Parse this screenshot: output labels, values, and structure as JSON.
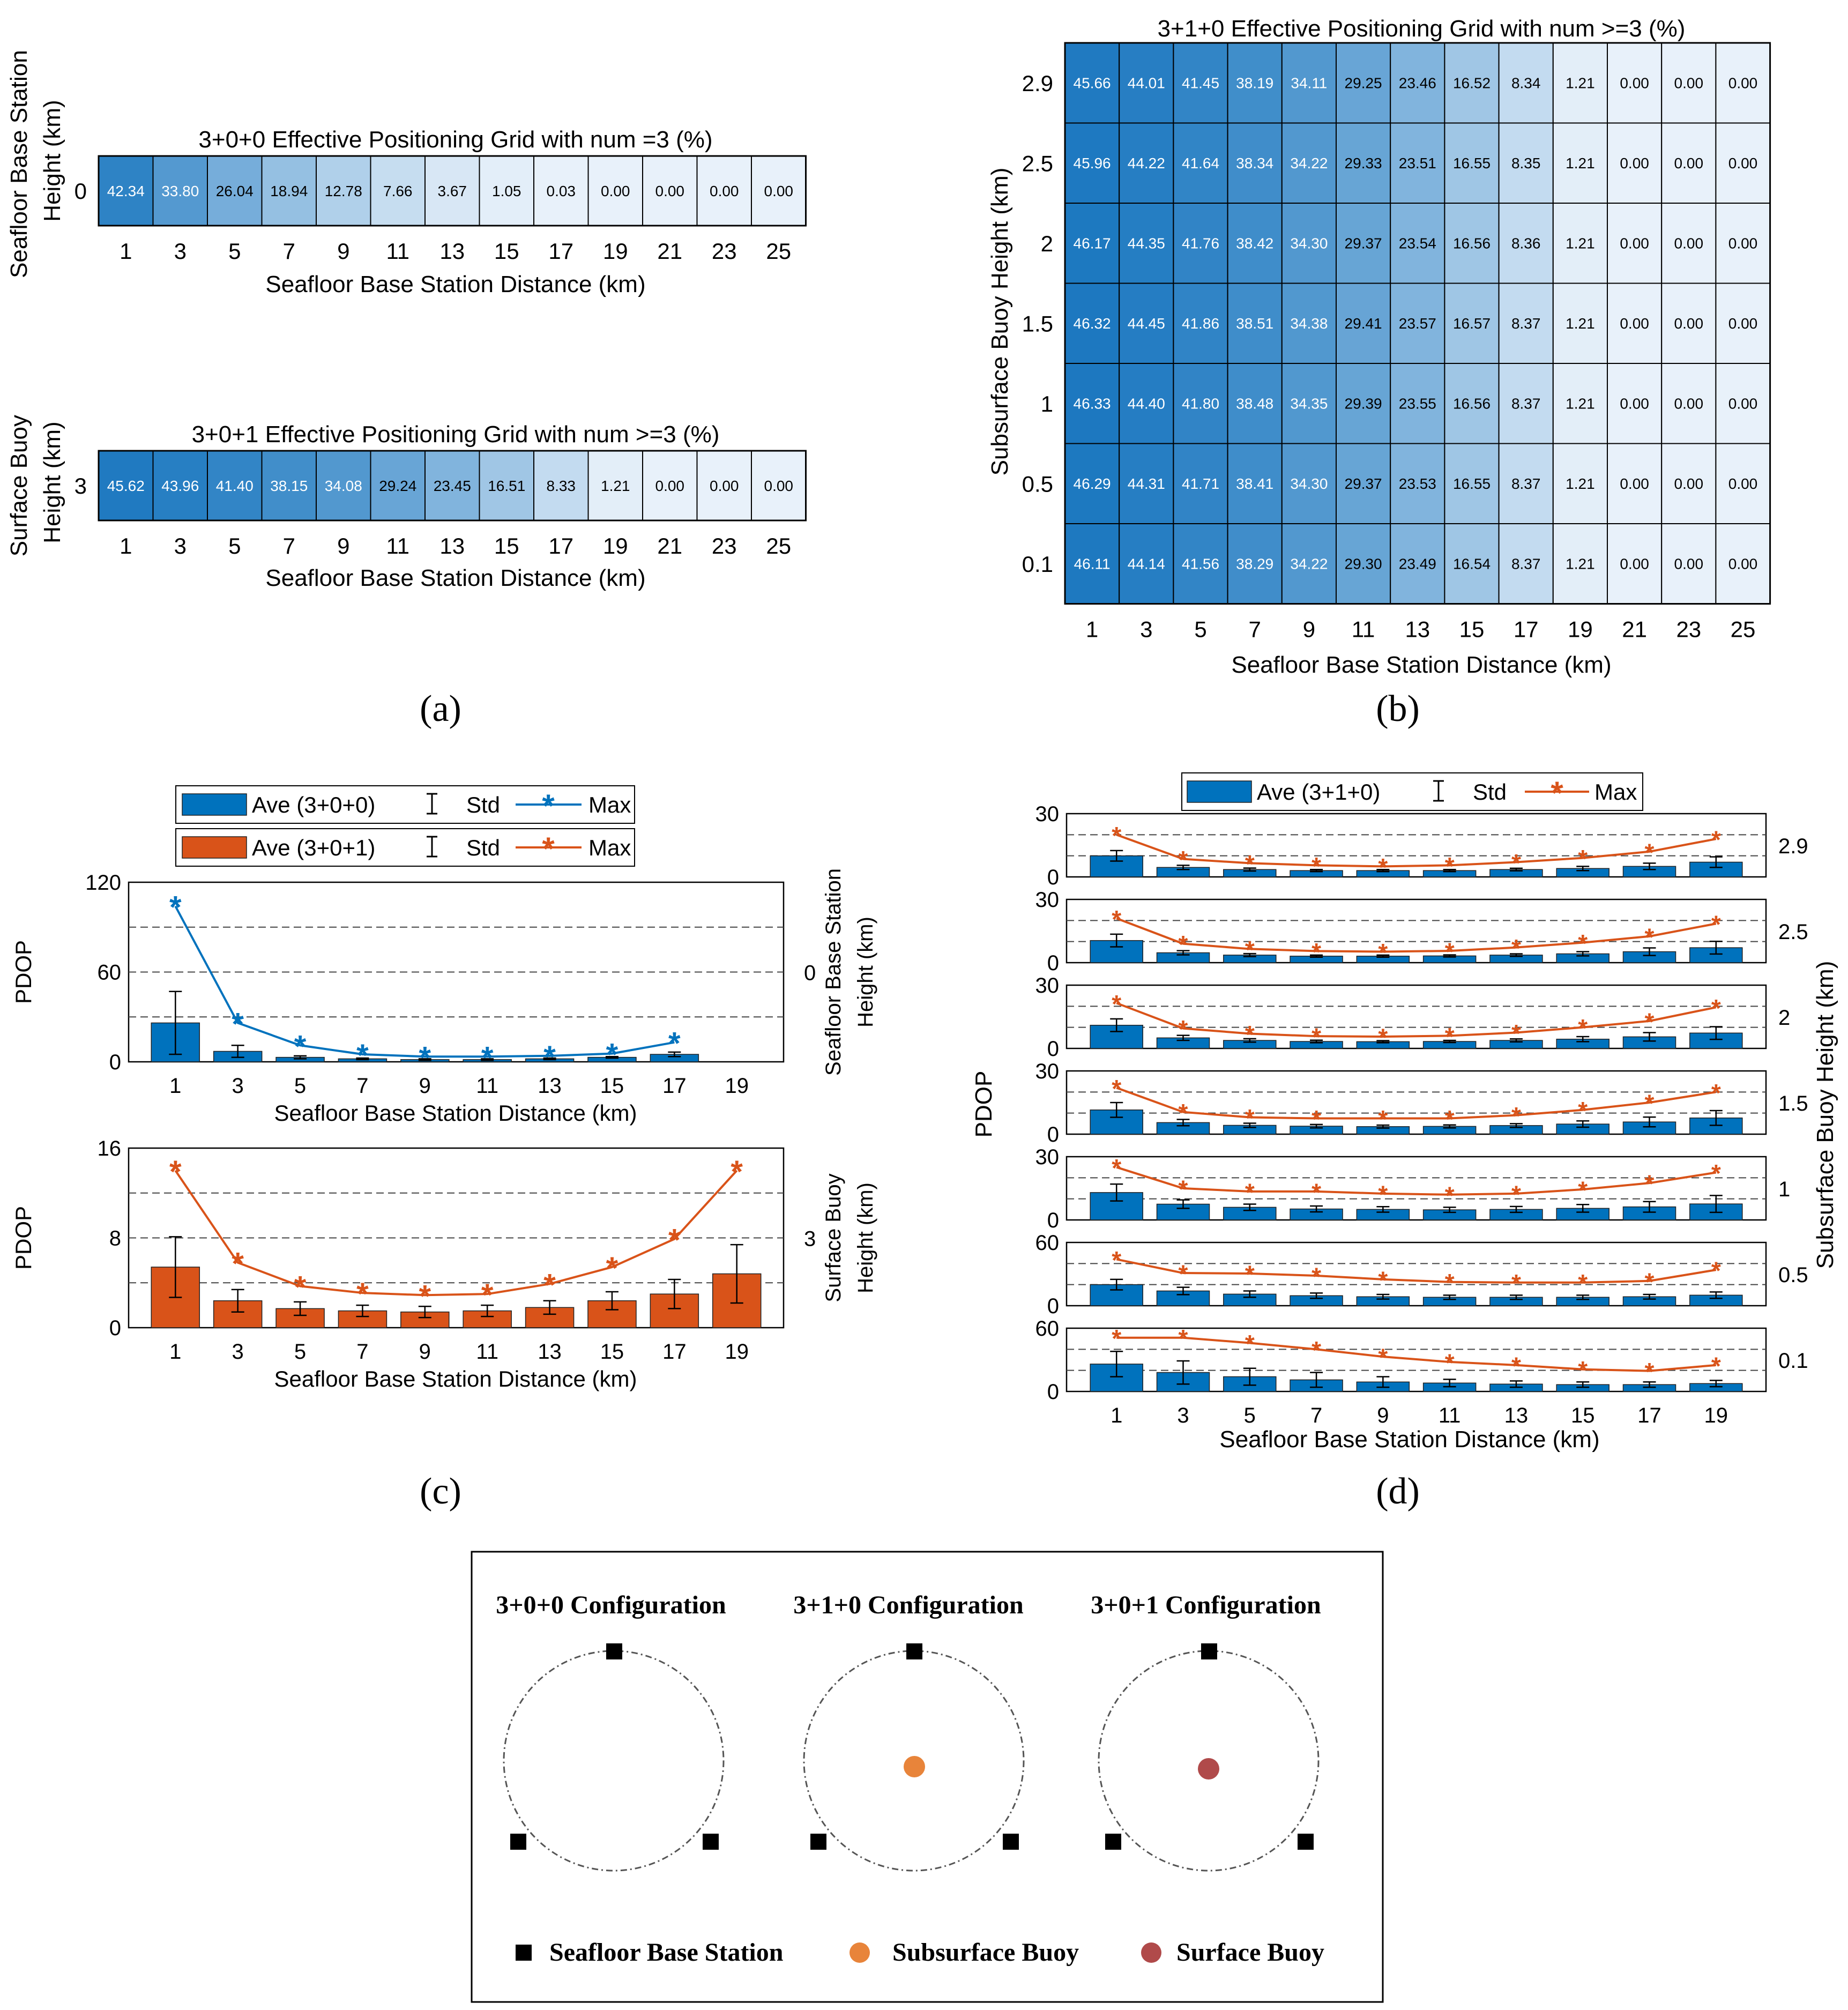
{
  "panel_labels": [
    "(a)",
    "(b)",
    "(c)",
    "(d)"
  ],
  "colors": {
    "blue": "#0072BD",
    "orange": "#D95319",
    "heat_low": "#E8F1FA",
    "heat_high": "#1C78C0",
    "subsurface_buoy": "#E8843A",
    "surface_buoy": "#B04A4A"
  },
  "chart_data": [
    {
      "id": "a-top",
      "type": "heatmap",
      "title": "3+0+0 Effective Positioning Grid with num =3 (%)",
      "xlabel": "Seafloor Base Station Distance (km)",
      "ylabel": "Seafloor Base Station Height (km)",
      "x": [
        1,
        3,
        5,
        7,
        9,
        11,
        13,
        15,
        17,
        19,
        21,
        23,
        25
      ],
      "y": [
        0
      ],
      "values": [
        [
          42.34,
          33.8,
          26.04,
          18.94,
          12.78,
          7.66,
          3.67,
          1.05,
          0.03,
          0.0,
          0.0,
          0.0,
          0.0
        ]
      ]
    },
    {
      "id": "a-bottom",
      "type": "heatmap",
      "title": "3+0+1 Effective Positioning Grid with num >=3 (%)",
      "xlabel": "Seafloor Base Station Distance (km)",
      "ylabel": "Surface Buoy Height (km)",
      "x": [
        1,
        3,
        5,
        7,
        9,
        11,
        13,
        15,
        17,
        19,
        21,
        23,
        25
      ],
      "y": [
        3
      ],
      "values": [
        [
          45.62,
          43.96,
          41.4,
          38.15,
          34.08,
          29.24,
          23.45,
          16.51,
          8.33,
          1.21,
          0.0,
          0.0,
          0.0
        ]
      ]
    },
    {
      "id": "b",
      "type": "heatmap",
      "title": "3+1+0 Effective Positioning Grid with num >=3 (%)",
      "xlabel": "Seafloor Base Station Distance (km)",
      "ylabel": "Subsurface Buoy Height (km)",
      "x": [
        1,
        3,
        5,
        7,
        9,
        11,
        13,
        15,
        17,
        19,
        21,
        23,
        25
      ],
      "y": [
        2.9,
        2.5,
        2,
        1.5,
        1,
        0.5,
        0.1
      ],
      "values": [
        [
          45.66,
          44.01,
          41.45,
          38.19,
          34.11,
          29.25,
          23.46,
          16.52,
          8.34,
          1.21,
          0.0,
          0.0,
          0.0
        ],
        [
          45.96,
          44.22,
          41.64,
          38.34,
          34.22,
          29.33,
          23.51,
          16.55,
          8.35,
          1.21,
          0.0,
          0.0,
          0.0
        ],
        [
          46.17,
          44.35,
          41.76,
          38.42,
          34.3,
          29.37,
          23.54,
          16.56,
          8.36,
          1.21,
          0.0,
          0.0,
          0.0
        ],
        [
          46.32,
          44.45,
          41.86,
          38.51,
          34.38,
          29.41,
          23.57,
          16.57,
          8.37,
          1.21,
          0.0,
          0.0,
          0.0
        ],
        [
          46.33,
          44.4,
          41.8,
          38.48,
          34.35,
          29.39,
          23.55,
          16.56,
          8.37,
          1.21,
          0.0,
          0.0,
          0.0
        ],
        [
          46.29,
          44.31,
          41.71,
          38.41,
          34.3,
          29.37,
          23.53,
          16.55,
          8.37,
          1.21,
          0.0,
          0.0,
          0.0
        ],
        [
          46.11,
          44.14,
          41.56,
          38.29,
          34.22,
          29.3,
          23.49,
          16.54,
          8.37,
          1.21,
          0.0,
          0.0,
          0.0
        ]
      ]
    },
    {
      "id": "c",
      "type": "bar",
      "ylabel": "PDOP",
      "xlabel": "Seafloor Base Station Distance (km)",
      "categories": [
        1,
        3,
        5,
        7,
        9,
        11,
        13,
        15,
        17,
        19
      ],
      "legend": [
        {
          "ave": "Ave (3+0+0)",
          "std": "Std",
          "max": "Max",
          "color": "blue",
          "marker": "*"
        },
        {
          "ave": "Ave (3+0+1)",
          "std": "Std",
          "max": "Max",
          "color": "orange",
          "marker": "*"
        }
      ],
      "subplots": [
        {
          "config": "3+0+0",
          "right_label": "Seafloor Base Station Height (km)",
          "right_tick": "0",
          "ylim": [
            0,
            120
          ],
          "yticks": [
            0,
            60,
            120
          ],
          "gridlines": [
            30,
            60,
            90
          ],
          "color": "blue",
          "ave": [
            26,
            7,
            3,
            2,
            1.5,
            1.5,
            2,
            3,
            5,
            null
          ],
          "std": [
            21,
            4,
            1,
            0.5,
            0.5,
            0.5,
            0.5,
            0.5,
            1.5,
            null
          ],
          "max": [
            104,
            26,
            11,
            5,
            3.5,
            3.5,
            4,
            5.5,
            13,
            null
          ]
        },
        {
          "config": "3+0+1",
          "right_label": "Surface Buoy Height (km)",
          "right_tick": "3",
          "ylim": [
            0,
            16
          ],
          "yticks": [
            0,
            8,
            16
          ],
          "gridlines": [
            4,
            8,
            12
          ],
          "color": "orange",
          "ave": [
            5.4,
            2.4,
            1.7,
            1.5,
            1.4,
            1.5,
            1.8,
            2.4,
            3.0,
            4.8
          ],
          "std": [
            2.7,
            1.0,
            0.6,
            0.5,
            0.5,
            0.5,
            0.6,
            0.8,
            1.3,
            2.6
          ],
          "max": [
            14.0,
            5.8,
            3.7,
            3.1,
            2.9,
            3.0,
            3.9,
            5.4,
            7.9,
            14.0
          ]
        }
      ]
    },
    {
      "id": "d",
      "type": "bar",
      "ylabel": "PDOP",
      "xlabel": "Seafloor Base Station Distance (km)",
      "right_label": "Subsurface Buoy Height (km)",
      "categories": [
        1,
        3,
        5,
        7,
        9,
        11,
        13,
        15,
        17,
        19
      ],
      "legend": {
        "ave": "Ave (3+1+0)",
        "std": "Std",
        "max": "Max"
      },
      "subplots": [
        {
          "height": "2.9",
          "ylim": [
            0,
            30
          ],
          "yticks": [
            0,
            30
          ],
          "gridlines": [
            10,
            20
          ],
          "ave": [
            10,
            4.5,
            3.5,
            3,
            3,
            3,
            3.5,
            4,
            5,
            7
          ],
          "std": [
            2.5,
            1,
            0.7,
            0.5,
            0.5,
            0.5,
            0.6,
            1,
            1.5,
            2.5
          ],
          "max": [
            20,
            8.5,
            6.5,
            5.5,
            5,
            5.5,
            7,
            9,
            12,
            18
          ]
        },
        {
          "height": "2.5",
          "ylim": [
            0,
            30
          ],
          "yticks": [
            0,
            30
          ],
          "gridlines": [
            10,
            20
          ],
          "ave": [
            10.5,
            4.7,
            3.6,
            3.1,
            3.1,
            3.2,
            3.6,
            4.2,
            5.2,
            7.1
          ],
          "std": [
            3,
            1,
            0.7,
            0.5,
            0.5,
            0.5,
            0.6,
            1,
            1.8,
            3
          ],
          "max": [
            21,
            9,
            6.5,
            5.5,
            5.2,
            5.6,
            7.2,
            9.5,
            12.5,
            18.5
          ]
        },
        {
          "height": "2",
          "ylim": [
            0,
            30
          ],
          "yticks": [
            0,
            30
          ],
          "gridlines": [
            10,
            20
          ],
          "ave": [
            11,
            5,
            3.8,
            3.3,
            3.2,
            3.3,
            3.8,
            4.4,
            5.5,
            7.3
          ],
          "std": [
            3,
            1.2,
            0.8,
            0.6,
            0.5,
            0.5,
            0.7,
            1.2,
            2,
            3
          ],
          "max": [
            21.5,
            9.5,
            7,
            5.8,
            5.6,
            6,
            7.5,
            10,
            13,
            19.5
          ]
        },
        {
          "height": "1.5",
          "ylim": [
            0,
            30
          ],
          "yticks": [
            0,
            30
          ],
          "gridlines": [
            10,
            20
          ],
          "ave": [
            11.5,
            5.5,
            4.2,
            3.8,
            3.6,
            3.7,
            4.1,
            4.8,
            5.8,
            7.7
          ],
          "std": [
            3.5,
            1.5,
            1,
            0.8,
            0.7,
            0.7,
            0.9,
            1.5,
            2.3,
            3.5
          ],
          "max": [
            22,
            10.5,
            8,
            7.5,
            7.5,
            7.5,
            9,
            11.5,
            15,
            20
          ]
        },
        {
          "height": "1",
          "ylim": [
            0,
            30
          ],
          "yticks": [
            0,
            30
          ],
          "gridlines": [
            10,
            20
          ],
          "ave": [
            13,
            7.5,
            6,
            5.2,
            5,
            4.8,
            5,
            5.5,
            6.2,
            7.6
          ],
          "std": [
            4,
            2,
            1.5,
            1.4,
            1.3,
            1.2,
            1.4,
            1.8,
            2.5,
            4
          ],
          "max": [
            25,
            15,
            13.5,
            13.5,
            12.5,
            12,
            12.5,
            14.5,
            17.5,
            22.5
          ]
        },
        {
          "height": "0.5",
          "ylim": [
            0,
            60
          ],
          "yticks": [
            0,
            60
          ],
          "gridlines": [
            20,
            40
          ],
          "ave": [
            20,
            14,
            11,
            9.5,
            8.5,
            8,
            8,
            8,
            8.5,
            10
          ],
          "std": [
            5,
            3.5,
            3,
            2.5,
            2.2,
            2,
            2,
            2,
            2.2,
            3
          ],
          "max": [
            44,
            31,
            30.5,
            28.5,
            25,
            22.5,
            22,
            22,
            23.5,
            34
          ]
        },
        {
          "height": "0.1",
          "ylim": [
            0,
            60
          ],
          "yticks": [
            0,
            60
          ],
          "gridlines": [
            20,
            40
          ],
          "ave": [
            26,
            18,
            14,
            11,
            9,
            8,
            7,
            6.5,
            6.5,
            7.5
          ],
          "std": [
            12,
            11,
            8,
            7,
            5,
            3.5,
            3,
            2.5,
            2.5,
            3
          ],
          "max": [
            51,
            51,
            46,
            40,
            33,
            28,
            25,
            21,
            19.5,
            25
          ]
        }
      ]
    }
  ],
  "diagram_e": {
    "configs": [
      "3+0+0 Configuration",
      "3+1+0 Configuration",
      "3+0+1 Configuration"
    ],
    "legend": {
      "base_station": "Seafloor Base Station",
      "subsurface": "Subsurface Buoy",
      "surface": "Surface Buoy"
    }
  }
}
